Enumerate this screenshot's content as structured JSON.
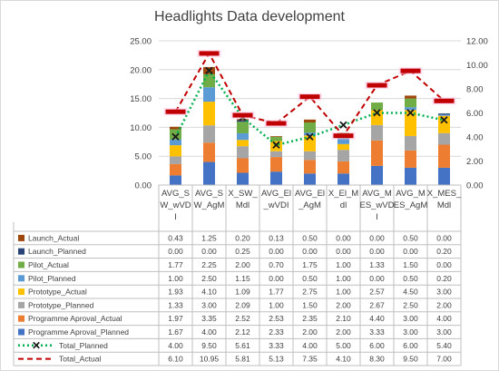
{
  "chart_data": {
    "type": "bar",
    "title": "Headlights Data development",
    "categories": [
      [
        "AVG_S",
        "W_wVD",
        "I"
      ],
      [
        "AVG_S",
        "W_AgM"
      ],
      [
        "X_SW_",
        "Mdl"
      ],
      [
        "AVG_El",
        "_wVDI"
      ],
      [
        "AVG_El",
        "_AgM"
      ],
      [
        "X_El_M",
        "dl"
      ],
      [
        "AVG_M",
        "ES_wVD",
        "I"
      ],
      [
        "AVG_M",
        "ES_AgM"
      ],
      [
        "X_MES_",
        "Mdl"
      ]
    ],
    "y_left": {
      "min": 0,
      "max": 25,
      "step": 5,
      "ticks": [
        "0.00",
        "5.00",
        "10.00",
        "15.00",
        "20.00",
        "25.00"
      ]
    },
    "y_right": {
      "min": 0,
      "max": 12,
      "step": 2,
      "ticks": [
        "0.00",
        "2.00",
        "4.00",
        "6.00",
        "8.00",
        "10.00",
        "12.00"
      ]
    },
    "stacked_series": [
      {
        "name": "Programme Aproval_Planned",
        "color": "#4472c4",
        "values": [
          1.67,
          4.0,
          2.12,
          2.33,
          2.0,
          2.0,
          3.33,
          3.0,
          3.0
        ]
      },
      {
        "name": "Programme Aproval_Actual",
        "color": "#ed7d31",
        "values": [
          1.97,
          3.35,
          2.52,
          2.53,
          2.35,
          2.1,
          4.4,
          3.0,
          4.0
        ]
      },
      {
        "name": "Prototype_Planned",
        "color": "#a5a5a5",
        "values": [
          1.33,
          3.0,
          2.09,
          1.0,
          1.5,
          2.0,
          2.67,
          2.5,
          2.0
        ]
      },
      {
        "name": "Prototype_Actual",
        "color": "#ffc000",
        "values": [
          1.93,
          4.1,
          1.09,
          1.77,
          2.75,
          1.0,
          2.57,
          4.5,
          3.0
        ]
      },
      {
        "name": "Pilot_Planned",
        "color": "#5b9bd5",
        "values": [
          1.0,
          2.5,
          1.15,
          0.0,
          0.5,
          1.0,
          0.0,
          0.5,
          0.2
        ]
      },
      {
        "name": "Pilot_Actual",
        "color": "#70ad47",
        "values": [
          1.77,
          2.25,
          2.0,
          0.7,
          1.75,
          1.0,
          1.33,
          1.5,
          0.0
        ]
      },
      {
        "name": "Launch_Planned",
        "color": "#264478",
        "values": [
          0.0,
          0.0,
          0.25,
          0.0,
          0.0,
          0.0,
          0.0,
          0.0,
          0.2
        ]
      },
      {
        "name": "Launch_Actual",
        "color": "#9e480e",
        "values": [
          0.43,
          1.25,
          0.2,
          0.13,
          0.5,
          0.0,
          0.0,
          0.5,
          0.0
        ]
      }
    ],
    "line_series": [
      {
        "name": "Total_Planned",
        "color": "#00b050",
        "axis": "right",
        "marker": "x",
        "style": "dotted",
        "values": [
          4.0,
          9.5,
          5.61,
          3.33,
          4.0,
          5.0,
          6.0,
          6.0,
          5.4
        ]
      },
      {
        "name": "Total_Actual",
        "color": "#c00000",
        "axis": "right",
        "marker": "dash",
        "style": "dashed",
        "values": [
          6.1,
          10.95,
          5.81,
          5.13,
          7.35,
          4.1,
          8.3,
          9.5,
          7.0
        ]
      }
    ],
    "table_row_order": [
      "Launch_Actual",
      "Launch_Planned",
      "Pilot_Actual",
      "Pilot_Planned",
      "Prototype_Actual",
      "Prototype_Planned",
      "Programme Aproval_Actual",
      "Programme Aproval_Planned",
      "Total_Planned",
      "Total_Actual"
    ],
    "grid": true
  }
}
